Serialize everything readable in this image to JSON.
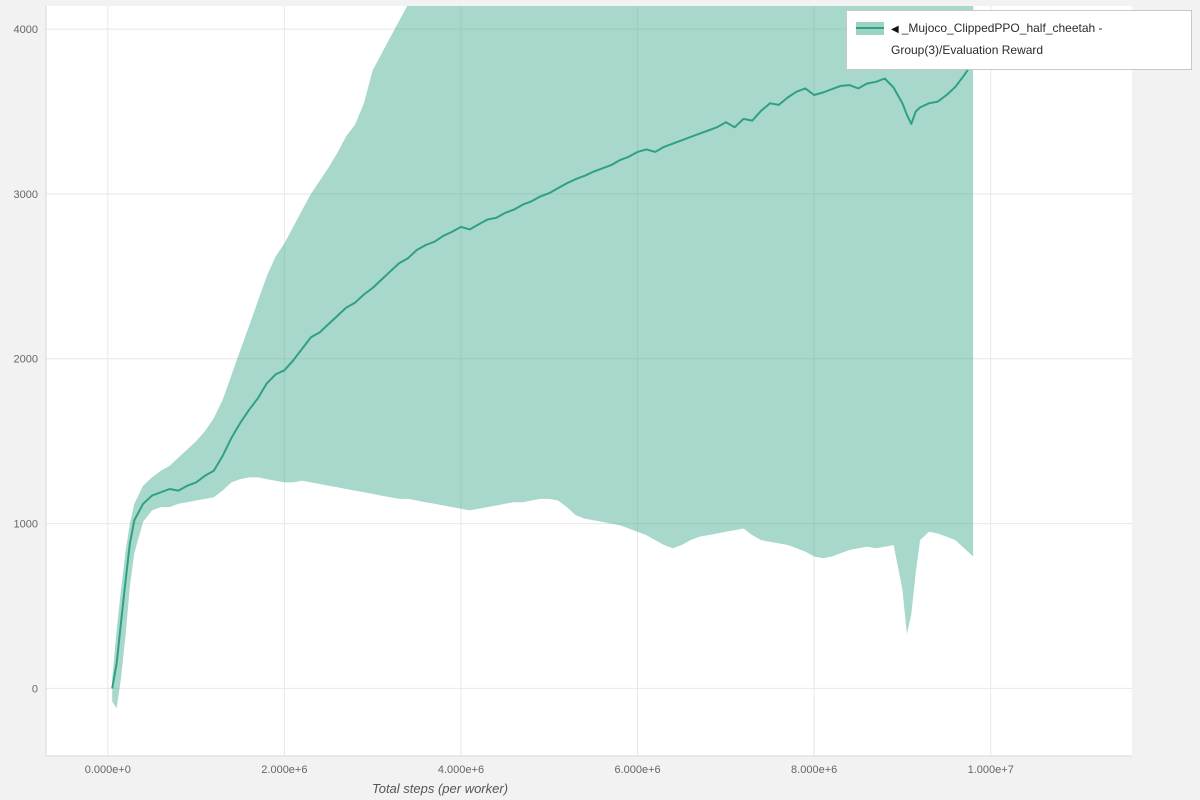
{
  "figure": {
    "background": "#f2f2f2",
    "plot_background": "#ffffff"
  },
  "legend": {
    "marker": "◀",
    "label": "_Mujoco_ClippedPPO_half_cheetah - Group(3)/Evaluation Reward"
  },
  "chart_data": {
    "type": "line",
    "title": "",
    "xlabel": "Total steps (per worker)",
    "ylabel": "",
    "xlim": [
      -700000,
      11600000
    ],
    "ylim": [
      -410,
      4140
    ],
    "grid": true,
    "legend_position": "top-right",
    "xticks": [
      {
        "value": 0,
        "label": "0.000e+0"
      },
      {
        "value": 2000000,
        "label": "2.000e+6"
      },
      {
        "value": 4000000,
        "label": "4.000e+6"
      },
      {
        "value": 6000000,
        "label": "6.000e+6"
      },
      {
        "value": 8000000,
        "label": "8.000e+6"
      },
      {
        "value": 10000000,
        "label": "1.000e+7"
      }
    ],
    "yticks": [
      {
        "value": 0,
        "label": "0"
      },
      {
        "value": 1000,
        "label": "1000"
      },
      {
        "value": 2000,
        "label": "2000"
      },
      {
        "value": 3000,
        "label": "3000"
      },
      {
        "value": 4000,
        "label": "4000"
      }
    ],
    "colors": {
      "line": "#2fa183",
      "band": "#2fa183",
      "band_opacity": 0.42,
      "grid": "#e8e8e8",
      "axis_line": "#d8d8d8",
      "tick_label": "#666666"
    },
    "series": [
      {
        "name": "_Mujoco_ClippedPPO_half_cheetah - Group(3)/Evaluation Reward",
        "x": [
          50000,
          100000,
          150000,
          200000,
          250000,
          300000,
          400000,
          500000,
          600000,
          700000,
          800000,
          900000,
          1000000,
          1100000,
          1200000,
          1300000,
          1400000,
          1500000,
          1600000,
          1700000,
          1800000,
          1900000,
          2000000,
          2100000,
          2200000,
          2300000,
          2400000,
          2500000,
          2600000,
          2700000,
          2800000,
          2900000,
          3000000,
          3100000,
          3200000,
          3300000,
          3400000,
          3500000,
          3600000,
          3700000,
          3800000,
          3900000,
          4000000,
          4100000,
          4200000,
          4300000,
          4400000,
          4500000,
          4600000,
          4700000,
          4800000,
          4900000,
          5000000,
          5100000,
          5200000,
          5300000,
          5400000,
          5500000,
          5600000,
          5700000,
          5800000,
          5900000,
          6000000,
          6100000,
          6200000,
          6300000,
          6400000,
          6500000,
          6600000,
          6700000,
          6800000,
          6900000,
          7000000,
          7100000,
          7200000,
          7300000,
          7400000,
          7500000,
          7600000,
          7700000,
          7800000,
          7900000,
          8000000,
          8100000,
          8200000,
          8300000,
          8400000,
          8500000,
          8600000,
          8700000,
          8800000,
          8900000,
          9000000,
          9050000,
          9100000,
          9150000,
          9200000,
          9300000,
          9400000,
          9500000,
          9600000,
          9700000,
          9800000
        ],
        "mean": [
          0,
          150,
          400,
          650,
          880,
          1020,
          1120,
          1170,
          1190,
          1210,
          1200,
          1230,
          1250,
          1290,
          1320,
          1410,
          1520,
          1610,
          1690,
          1760,
          1850,
          1905,
          1930,
          1990,
          2060,
          2130,
          2160,
          2210,
          2260,
          2310,
          2340,
          2390,
          2430,
          2480,
          2530,
          2580,
          2610,
          2660,
          2690,
          2710,
          2745,
          2770,
          2800,
          2785,
          2815,
          2845,
          2855,
          2885,
          2905,
          2935,
          2955,
          2985,
          3005,
          3035,
          3065,
          3090,
          3110,
          3135,
          3155,
          3175,
          3205,
          3225,
          3255,
          3270,
          3255,
          3285,
          3305,
          3325,
          3345,
          3365,
          3385,
          3405,
          3435,
          3405,
          3455,
          3445,
          3505,
          3550,
          3540,
          3585,
          3620,
          3640,
          3600,
          3615,
          3635,
          3655,
          3660,
          3640,
          3670,
          3680,
          3700,
          3645,
          3550,
          3480,
          3425,
          3500,
          3525,
          3550,
          3560,
          3600,
          3650,
          3720,
          3800
        ],
        "lower": [
          -80,
          -120,
          60,
          320,
          620,
          820,
          1010,
          1080,
          1100,
          1100,
          1120,
          1130,
          1140,
          1150,
          1160,
          1200,
          1250,
          1270,
          1280,
          1280,
          1270,
          1260,
          1250,
          1250,
          1260,
          1250,
          1240,
          1230,
          1220,
          1210,
          1200,
          1190,
          1180,
          1170,
          1160,
          1150,
          1150,
          1140,
          1130,
          1120,
          1110,
          1100,
          1090,
          1080,
          1090,
          1100,
          1110,
          1120,
          1130,
          1130,
          1140,
          1150,
          1150,
          1140,
          1100,
          1050,
          1030,
          1020,
          1010,
          1000,
          990,
          970,
          950,
          930,
          900,
          870,
          850,
          870,
          900,
          920,
          930,
          940,
          950,
          960,
          970,
          930,
          900,
          890,
          880,
          870,
          850,
          830,
          800,
          790,
          800,
          820,
          840,
          850,
          860,
          850,
          860,
          870,
          600,
          330,
          450,
          700,
          900,
          950,
          940,
          920,
          900,
          850,
          800
        ],
        "upper": [
          60,
          350,
          600,
          830,
          1000,
          1120,
          1230,
          1280,
          1320,
          1350,
          1400,
          1450,
          1500,
          1560,
          1640,
          1750,
          1900,
          2050,
          2200,
          2350,
          2500,
          2620,
          2700,
          2800,
          2900,
          3000,
          3080,
          3160,
          3250,
          3350,
          3420,
          3550,
          3750,
          3850,
          3950,
          4050,
          4150,
          4250,
          4350,
          4400,
          4450,
          4500,
          4550,
          4550,
          4550,
          4550,
          4550,
          4550,
          4550,
          4550,
          4550,
          4550,
          4550,
          4550,
          4550,
          4550,
          4550,
          4550,
          4550,
          4550,
          4550,
          4550,
          4550,
          4550,
          4550,
          4550,
          4550,
          4550,
          4550,
          4550,
          4550,
          4550,
          4550,
          4550,
          4550,
          4550,
          4550,
          4550,
          4550,
          4550,
          4550,
          4550,
          4550,
          4550,
          4550,
          4550,
          4550,
          4550,
          4550,
          4550,
          4550,
          4550,
          4550,
          4550,
          4550,
          4550,
          4550,
          4550,
          4550,
          4550,
          4550,
          4550,
          4550
        ]
      }
    ]
  }
}
